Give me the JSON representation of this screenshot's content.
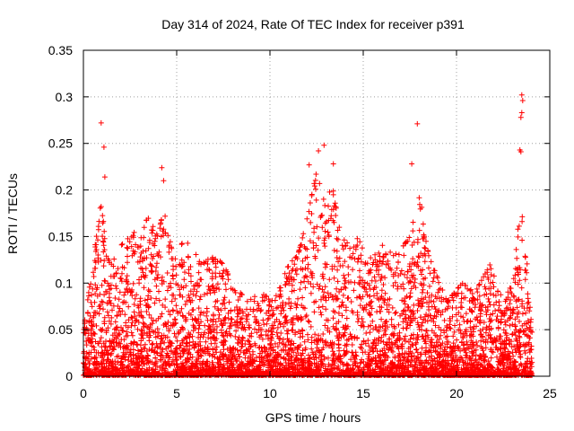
{
  "chart_data": {
    "type": "scatter",
    "title": "Day 314 of 2024, Rate Of TEC Index for receiver p391",
    "xlabel": "GPS time / hours",
    "ylabel": "ROTI / TECUs",
    "xlim": [
      0,
      25
    ],
    "ylim": [
      0,
      0.35
    ],
    "x_ticks": [
      0,
      5,
      10,
      15,
      20,
      25
    ],
    "x_tick_labels": [
      "0",
      "5",
      "10",
      "15",
      "20",
      "25"
    ],
    "y_ticks": [
      0,
      0.05,
      0.1,
      0.15,
      0.2,
      0.25,
      0.3,
      0.35
    ],
    "y_tick_labels": [
      "0",
      "0.05",
      "0.1",
      "0.15",
      "0.2",
      "0.25",
      "0.3",
      "0.35"
    ],
    "grid": true,
    "marker": "plus",
    "color": "#ff0000",
    "envelope": {
      "x": [
        0,
        0.5,
        0.8,
        1.0,
        1.2,
        1.5,
        2.0,
        2.5,
        3.0,
        3.5,
        4.0,
        4.3,
        4.8,
        5.2,
        5.8,
        6.3,
        7.0,
        7.5,
        8.0,
        8.8,
        9.5,
        10.2,
        11.0,
        11.5,
        12.0,
        12.5,
        13.0,
        13.3,
        13.8,
        14.3,
        14.8,
        15.2,
        16.0,
        16.8,
        17.5,
        18.0,
        18.5,
        19.5,
        20.3,
        21.0,
        21.8,
        22.5,
        23.0,
        23.5,
        24.0
      ],
      "y": [
        0.05,
        0.12,
        0.17,
        0.19,
        0.13,
        0.12,
        0.14,
        0.15,
        0.16,
        0.17,
        0.15,
        0.18,
        0.13,
        0.15,
        0.14,
        0.12,
        0.13,
        0.12,
        0.1,
        0.08,
        0.09,
        0.08,
        0.12,
        0.13,
        0.17,
        0.22,
        0.18,
        0.21,
        0.15,
        0.14,
        0.15,
        0.12,
        0.15,
        0.13,
        0.15,
        0.2,
        0.13,
        0.08,
        0.1,
        0.09,
        0.12,
        0.08,
        0.1,
        0.2,
        0.06
      ]
    },
    "outliers": [
      {
        "x": 0.95,
        "y": 0.272
      },
      {
        "x": 1.1,
        "y": 0.246
      },
      {
        "x": 1.15,
        "y": 0.214
      },
      {
        "x": 4.2,
        "y": 0.224
      },
      {
        "x": 4.3,
        "y": 0.21
      },
      {
        "x": 12.1,
        "y": 0.227
      },
      {
        "x": 12.6,
        "y": 0.242
      },
      {
        "x": 12.9,
        "y": 0.248
      },
      {
        "x": 13.4,
        "y": 0.228
      },
      {
        "x": 17.9,
        "y": 0.271
      },
      {
        "x": 17.6,
        "y": 0.228
      },
      {
        "x": 23.5,
        "y": 0.302
      },
      {
        "x": 23.55,
        "y": 0.296
      },
      {
        "x": 23.5,
        "y": 0.283
      },
      {
        "x": 23.45,
        "y": 0.278
      },
      {
        "x": 23.4,
        "y": 0.243
      },
      {
        "x": 23.45,
        "y": 0.241
      }
    ]
  }
}
